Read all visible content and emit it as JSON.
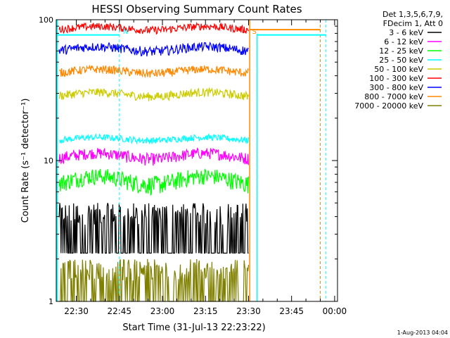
{
  "chart_data": {
    "type": "line",
    "title": "HESSI Observing Summary Count Rates",
    "xlabel": "Start Time (31-Jul-13 22:23:22)",
    "ylabel": "Count Rate (s⁻¹ detector⁻¹)",
    "y_scale": "log",
    "ylim": [
      1,
      100
    ],
    "y_tick_labels": [
      {
        "v": 1,
        "t": "1"
      },
      {
        "v": 10,
        "t": "10"
      },
      {
        "v": 100,
        "t": "100"
      }
    ],
    "xlim_minutes_after_2223": [
      0,
      98
    ],
    "x_tick_labels": [
      {
        "m": 7,
        "t": "22:30"
      },
      {
        "m": 22,
        "t": "22:45"
      },
      {
        "m": 37,
        "t": "23:00"
      },
      {
        "m": 52,
        "t": "23:15"
      },
      {
        "m": 67,
        "t": "23:30"
      },
      {
        "m": 82,
        "t": "23:45"
      },
      {
        "m": 97,
        "t": "00:00"
      }
    ],
    "grid": false,
    "legend_placement": "right",
    "legend_header": [
      "Det 1,3,5,6,7,9,",
      "FDecim 1, Att 0"
    ],
    "series": [
      {
        "name": "3 - 6 keV",
        "color": "#000000",
        "band": [
          2.2,
          5.0
        ],
        "noise": "binary"
      },
      {
        "name": "6 - 12 keV",
        "color": "#ff00ff",
        "band": [
          9.0,
          12.5
        ],
        "noise": "gauss"
      },
      {
        "name": "12 - 25 keV",
        "color": "#00ff00",
        "band": [
          5.5,
          9.0
        ],
        "noise": "gauss"
      },
      {
        "name": "25 - 50 keV",
        "color": "#00ffff",
        "band": [
          13.0,
          15.5
        ],
        "noise": "gauss"
      },
      {
        "name": "50 - 100 keV",
        "color": "#cccc00",
        "band": [
          26.0,
          33.0
        ],
        "noise": "gauss"
      },
      {
        "name": "100 - 300 keV",
        "color": "#ff0000",
        "band": [
          78.0,
          96.0
        ],
        "noise": "gauss"
      },
      {
        "name": "300 - 800 keV",
        "color": "#0000ff",
        "band": [
          54.0,
          70.0
        ],
        "noise": "gauss"
      },
      {
        "name": "800 - 7000 keV",
        "color": "#ff8800",
        "band": [
          38.0,
          48.0
        ],
        "noise": "gauss"
      },
      {
        "name": "7000 - 20000 keV",
        "color": "#808000",
        "band": [
          1.0,
          2.0
        ],
        "noise": "binary"
      }
    ],
    "flag_letters": [
      {
        "t": "N",
        "m": 22,
        "color": "#00ffff"
      },
      {
        "t": "S",
        "m": 67,
        "color": "#ff8800"
      }
    ],
    "data_end_minute": 67
  },
  "footer": {
    "timestamp": "1-Aug-2013 04:04"
  }
}
